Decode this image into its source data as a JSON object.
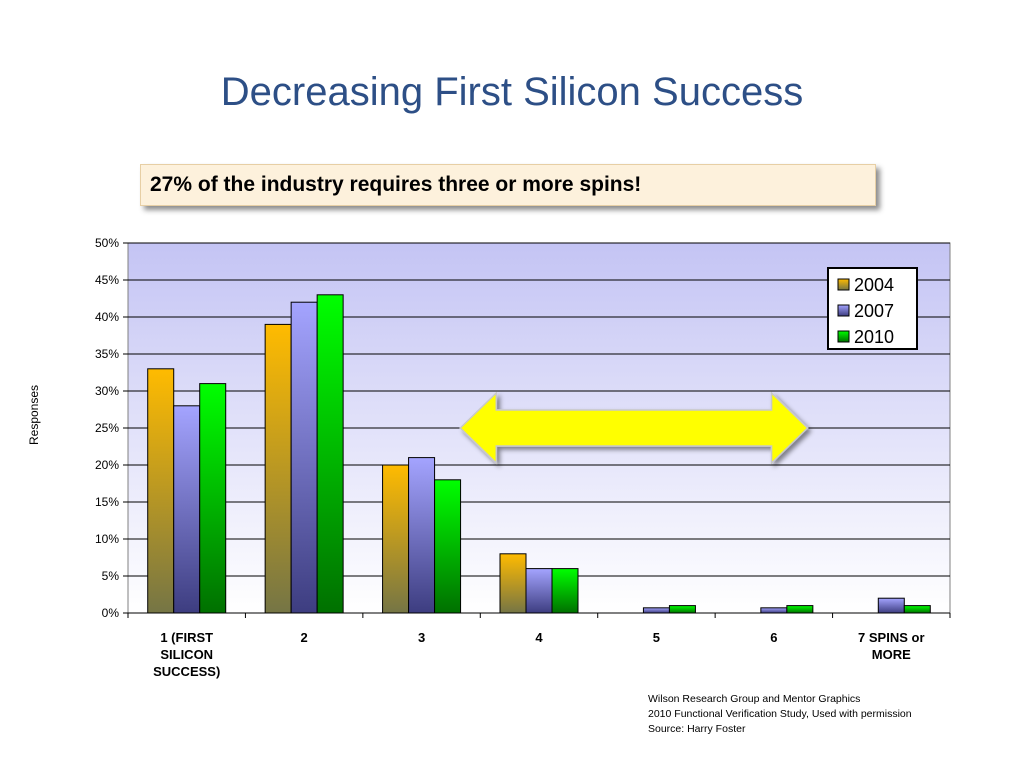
{
  "slide": {
    "title": "Decreasing First Silicon Success",
    "callout": "27% of the industry requires three or more spins!"
  },
  "source_lines": [
    "Wilson Research Group and Mentor Graphics",
    "2010 Functional Verification Study,   Used with permission",
    "Source: Harry Foster"
  ],
  "chart_data": {
    "type": "bar",
    "title": "",
    "xlabel": "",
    "ylabel": "Responses",
    "ylim": [
      0,
      50
    ],
    "ytick_step": 5,
    "ytick_suffix": "%",
    "grid": true,
    "legend_position": "top-right",
    "categories": [
      [
        "1 (FIRST",
        "SILICON",
        "SUCCESS)"
      ],
      [
        "2"
      ],
      [
        "3"
      ],
      [
        "4"
      ],
      [
        "5"
      ],
      [
        "6"
      ],
      [
        "7 SPINS or",
        "MORE"
      ]
    ],
    "series": [
      {
        "name": "2004",
        "color": "#f5b400",
        "values": [
          33,
          39,
          20,
          8,
          0,
          0,
          0
        ]
      },
      {
        "name": "2007",
        "color": "#9999ff",
        "values": [
          28,
          42,
          21,
          6,
          0.7,
          0.7,
          2
        ]
      },
      {
        "name": "2010",
        "color": "#00e000",
        "values": [
          31,
          43,
          18,
          6,
          1,
          1,
          1
        ]
      }
    ],
    "annotation": {
      "type": "double-arrow",
      "color": "#ffff00",
      "from_category": 3,
      "to_category": 6,
      "y": 25
    }
  }
}
